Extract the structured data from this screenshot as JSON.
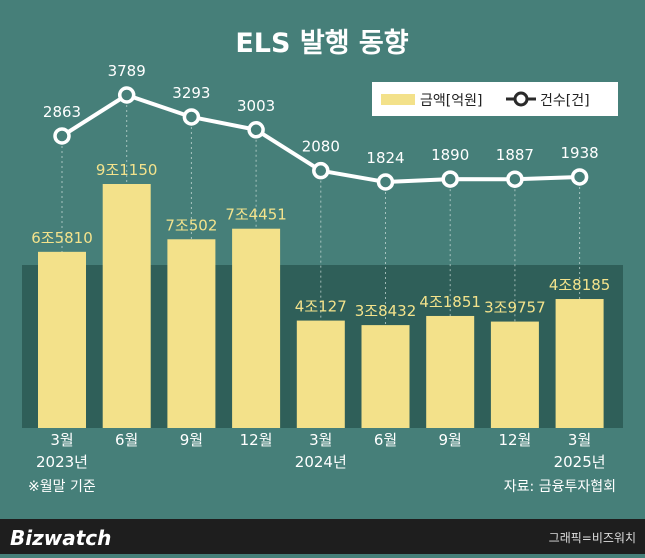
{
  "header": {
    "title": "ELS 발행 동향"
  },
  "legend": {
    "bar_label": "금액[억원]",
    "line_label": "건수[건]"
  },
  "notes": {
    "basis": "※월말 기준",
    "source": "자료: 금융투자협회"
  },
  "footer": {
    "brand": "Bizwatch",
    "credit": "그래픽=비즈워치"
  },
  "colors": {
    "background": "#467f79",
    "panel": "#2f5f59",
    "bar": "#f3e18a",
    "line": "#ffffff",
    "value_text": "#f4e38c"
  },
  "chart_data": {
    "type": "bar+line",
    "title": "ELS 발행 동향",
    "categories": [
      "3월",
      "6월",
      "9월",
      "12월",
      "3월",
      "6월",
      "9월",
      "12월",
      "3월"
    ],
    "year_labels": [
      "2023년",
      "",
      "",
      "",
      "2024년",
      "",
      "",
      "",
      "2025년"
    ],
    "series": [
      {
        "name": "금액[억원]",
        "type": "bar",
        "values": [
          65810,
          91150,
          70502,
          74451,
          40127,
          38432,
          41851,
          39757,
          48185
        ],
        "labels": [
          "6조5810",
          "9조1150",
          "7조502",
          "7조4451",
          "4조127",
          "3조8432",
          "4조1851",
          "3조9757",
          "4조8185"
        ]
      },
      {
        "name": "건수[건]",
        "type": "line",
        "values": [
          2863,
          3789,
          3293,
          3003,
          2080,
          1824,
          1890,
          1887,
          1938
        ]
      }
    ],
    "legend_position": "top-right"
  }
}
